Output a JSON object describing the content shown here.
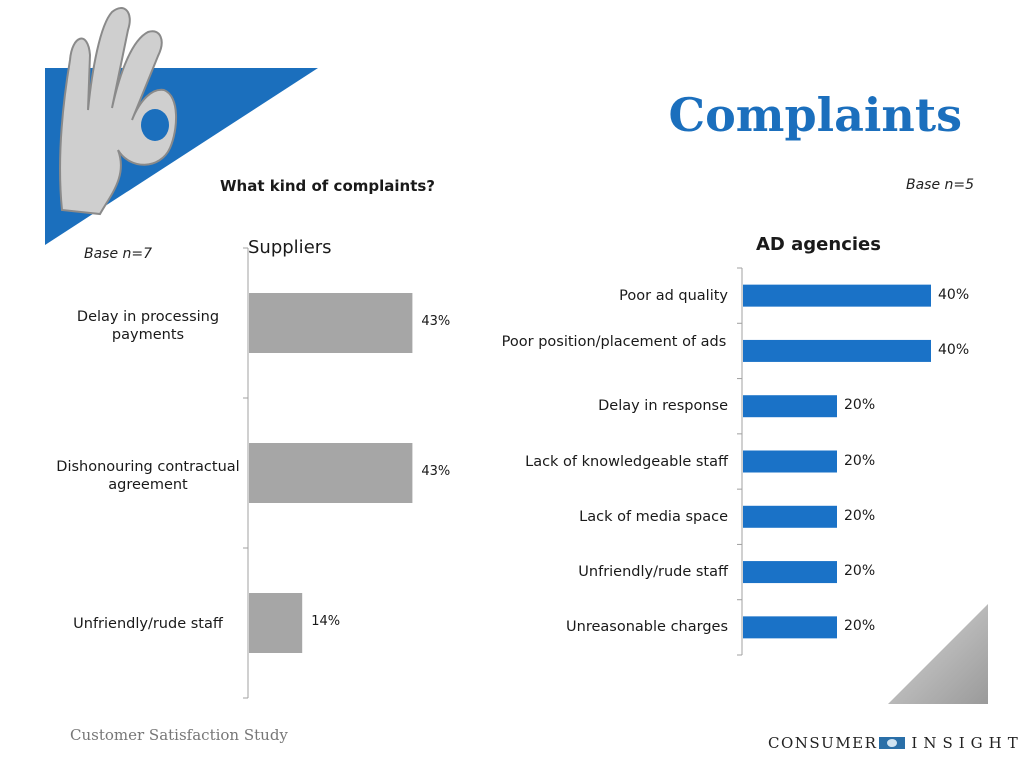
{
  "slide": {
    "title": "Complaints",
    "question": "What kind of complaints?",
    "footer_left": "Customer Satisfaction Study",
    "logo": {
      "left": "CONSUMER",
      "right": "INSIGHT"
    },
    "colors": {
      "accent": "#1b6fbd",
      "bar_blue": "#1a72c7",
      "bar_gray": "#a6a6a6"
    }
  },
  "chart_data": [
    {
      "type": "bar",
      "orientation": "horizontal",
      "title": "Suppliers",
      "base_note": "Base n=7",
      "categories": [
        "Delay in processing payments",
        "Dishonouring contractual agreement",
        "Unfriendly/rude staff"
      ],
      "values": [
        43,
        43,
        14
      ],
      "value_labels": [
        "43%",
        "43%",
        "14%"
      ],
      "xlim": [
        0,
        100
      ],
      "grid": false,
      "color": "#a6a6a6"
    },
    {
      "type": "bar",
      "orientation": "horizontal",
      "title": "AD agencies",
      "base_note": "Base n=5",
      "categories": [
        "Poor ad quality",
        "Poor position/placement of ads",
        "Delay in response",
        "Lack of knowledgeable staff",
        "Lack of media space",
        "Unfriendly/rude staff",
        "Unreasonable charges"
      ],
      "values": [
        40,
        40,
        20,
        20,
        20,
        20,
        20
      ],
      "value_labels": [
        "40%",
        "40%",
        "20%",
        "20%",
        "20%",
        "20%",
        "20%"
      ],
      "xlim": [
        0,
        100
      ],
      "grid": false,
      "color": "#1a72c7"
    }
  ]
}
